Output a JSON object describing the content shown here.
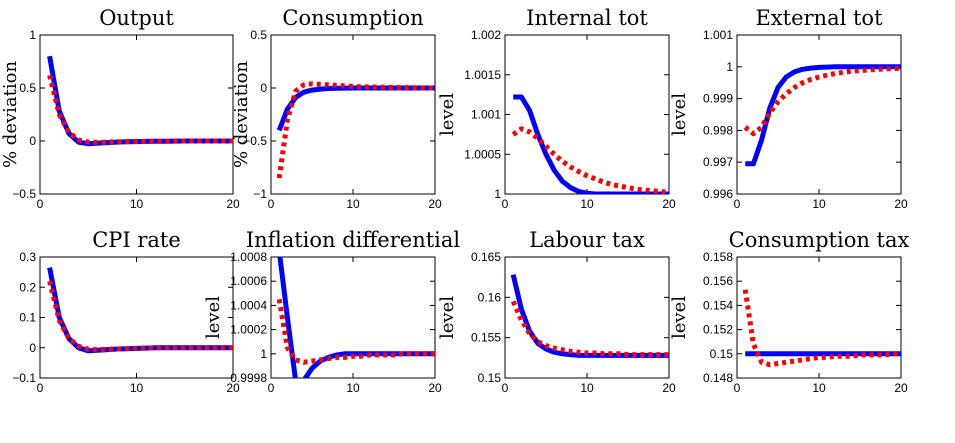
{
  "chart_data": [
    {
      "type": "line",
      "title": "Output",
      "ylabel": "% deviation",
      "xlim": [
        0,
        20
      ],
      "ylim": [
        -0.5,
        1
      ],
      "xticks": [
        0,
        10,
        20
      ],
      "xtick_labels": [
        "0",
        "10",
        "20"
      ],
      "yticks": [
        -0.5,
        0,
        0.5,
        1
      ],
      "ytick_labels": [
        "−0.5",
        "0",
        "0.5",
        "1"
      ],
      "x": [
        1,
        2,
        3,
        4,
        5,
        6,
        7,
        8,
        9,
        10,
        11,
        12,
        13,
        14,
        15,
        16,
        17,
        18,
        19,
        20
      ],
      "series": [
        {
          "color": "#0000ff",
          "style": "solid",
          "values": [
            0.8,
            0.28,
            0.07,
            -0.01,
            -0.025,
            -0.02,
            -0.015,
            -0.01,
            -0.008,
            -0.006,
            -0.004,
            -0.003,
            -0.002,
            -0.001,
            0,
            0,
            0,
            0,
            0,
            0
          ]
        },
        {
          "color": "#ff0000",
          "style": "dotted",
          "values": [
            0.62,
            0.25,
            0.08,
            0.01,
            -0.01,
            -0.012,
            -0.01,
            -0.008,
            -0.006,
            -0.005,
            -0.004,
            -0.003,
            -0.002,
            -0.001,
            0,
            0,
            0,
            0,
            0,
            0
          ]
        }
      ]
    },
    {
      "type": "line",
      "title": "Consumption",
      "ylabel": "% deviation",
      "xlim": [
        0,
        20
      ],
      "ylim": [
        -1,
        0.5
      ],
      "xticks": [
        0,
        10,
        20
      ],
      "xtick_labels": [
        "0",
        "10",
        "20"
      ],
      "yticks": [
        -1,
        -0.5,
        0,
        0.5
      ],
      "ytick_labels": [
        "−1",
        "−0.5",
        "0",
        "0.5"
      ],
      "x": [
        1,
        2,
        3,
        4,
        5,
        6,
        7,
        8,
        9,
        10,
        11,
        12,
        13,
        14,
        15,
        16,
        17,
        18,
        19,
        20
      ],
      "series": [
        {
          "color": "#0000ff",
          "style": "solid",
          "values": [
            -0.4,
            -0.2,
            -0.09,
            -0.04,
            -0.02,
            -0.01,
            -0.005,
            -0.003,
            -0.001,
            0,
            0,
            0,
            0,
            0,
            0,
            0,
            0,
            0,
            0,
            0
          ]
        },
        {
          "color": "#ff0000",
          "style": "dotted",
          "values": [
            -0.85,
            -0.3,
            -0.03,
            0.03,
            0.04,
            0.035,
            0.03,
            0.025,
            0.02,
            0.015,
            0.01,
            0.01,
            0.008,
            0.006,
            0.005,
            0.004,
            0.003,
            0.002,
            0.001,
            0
          ]
        }
      ]
    },
    {
      "type": "line",
      "title": "Internal tot",
      "ylabel": "level",
      "xlim": [
        0,
        20
      ],
      "ylim": [
        1,
        1.002
      ],
      "xticks": [
        0,
        10,
        20
      ],
      "xtick_labels": [
        "0",
        "10",
        "20"
      ],
      "yticks": [
        1,
        1.0005,
        1.001,
        1.0015,
        1.002
      ],
      "ytick_labels": [
        "1",
        "1.0005",
        "1.001",
        "1.0015",
        "1.002"
      ],
      "x": [
        1,
        2,
        3,
        4,
        5,
        6,
        7,
        8,
        9,
        10,
        11,
        12,
        13,
        14,
        15,
        16,
        17,
        18,
        19,
        20
      ],
      "series": [
        {
          "color": "#0000ff",
          "style": "solid",
          "values": [
            1.00122,
            1.00122,
            1.00105,
            1.00075,
            1.0005,
            1.0003,
            1.00016,
            1.00008,
            1.00003,
            1.00001,
            1.0,
            1.0,
            1.0,
            1.0,
            1.0,
            1.0,
            1.0,
            1.0,
            1.0,
            1.0
          ]
        },
        {
          "color": "#ff0000",
          "style": "dotted",
          "values": [
            1.00075,
            1.00082,
            1.00078,
            1.0007,
            1.0006,
            1.0005,
            1.00041,
            1.00034,
            1.00028,
            1.00023,
            1.00019,
            1.00015,
            1.00012,
            1.0001,
            1.00008,
            1.00006,
            1.00005,
            1.00004,
            1.00003,
            1.00002
          ]
        }
      ]
    },
    {
      "type": "line",
      "title": "External tot",
      "ylabel": "level",
      "xlim": [
        0,
        20
      ],
      "ylim": [
        0.996,
        1.001
      ],
      "xticks": [
        0,
        10,
        20
      ],
      "xtick_labels": [
        "0",
        "10",
        "20"
      ],
      "yticks": [
        0.996,
        0.997,
        0.998,
        0.999,
        1,
        1.001
      ],
      "ytick_labels": [
        "0.996",
        "0.997",
        "0.998",
        "0.999",
        "1",
        "1.001"
      ],
      "x": [
        1,
        2,
        3,
        4,
        5,
        6,
        7,
        8,
        9,
        10,
        11,
        12,
        13,
        14,
        15,
        16,
        17,
        18,
        19,
        20
      ],
      "series": [
        {
          "color": "#0000ff",
          "style": "solid",
          "values": [
            0.99695,
            0.99695,
            0.9977,
            0.9987,
            0.99935,
            0.99968,
            0.99984,
            0.99992,
            0.99996,
            0.99998,
            0.99999,
            1.0,
            1.0,
            1.0,
            1.0,
            1.0,
            1.0,
            1.0,
            1.0,
            1.0
          ]
        },
        {
          "color": "#ff0000",
          "style": "dotted",
          "values": [
            0.9981,
            0.9979,
            0.9981,
            0.99855,
            0.9989,
            0.99915,
            0.99935,
            0.9995,
            0.9996,
            0.99968,
            0.99974,
            0.99979,
            0.99983,
            0.99986,
            0.99988,
            0.9999,
            0.99992,
            0.99993,
            0.99994,
            0.99995
          ]
        }
      ]
    },
    {
      "type": "line",
      "title": "CPI rate",
      "ylabel": "level",
      "xlim": [
        0,
        20
      ],
      "ylim": [
        -0.1,
        0.3
      ],
      "xticks": [
        0,
        10,
        20
      ],
      "xtick_labels": [
        "0",
        "10",
        "20"
      ],
      "yticks": [
        -0.1,
        0,
        0.1,
        0.2,
        0.3
      ],
      "ytick_labels": [
        "−0.1",
        "0",
        "0.1",
        "0.2",
        "0.3"
      ],
      "x": [
        1,
        2,
        3,
        4,
        5,
        6,
        7,
        8,
        9,
        10,
        11,
        12,
        13,
        14,
        15,
        16,
        17,
        18,
        19,
        20
      ],
      "series": [
        {
          "color": "#0000ff",
          "style": "solid",
          "values": [
            0.265,
            0.1,
            0.03,
            0.0,
            -0.01,
            -0.008,
            -0.006,
            -0.004,
            -0.003,
            -0.002,
            -0.001,
            0,
            0,
            0,
            0,
            0,
            0,
            0,
            0,
            0
          ]
        },
        {
          "color": "#ff0000",
          "style": "dotted",
          "values": [
            0.22,
            0.09,
            0.03,
            0.005,
            -0.005,
            -0.006,
            -0.005,
            -0.004,
            -0.003,
            -0.002,
            -0.001,
            0,
            0,
            0,
            0,
            0,
            0,
            0,
            0,
            0
          ]
        }
      ]
    },
    {
      "type": "line",
      "title": "Inflation differential",
      "ylabel": "level",
      "xlim": [
        0,
        20
      ],
      "ylim": [
        0.9998,
        1.0008
      ],
      "xticks": [
        0,
        10,
        20
      ],
      "xtick_labels": [
        "0",
        "10",
        "20"
      ],
      "yticks": [
        0.9998,
        1,
        1.0002,
        1.0004,
        1.0006,
        1.0008
      ],
      "ytick_labels": [
        "0.9998",
        "1",
        "1.0002",
        "1.0004",
        "1.0006",
        "1.0008"
      ],
      "x": [
        1,
        2,
        3,
        4,
        5,
        6,
        7,
        8,
        9,
        10,
        11,
        12,
        13,
        14,
        15,
        16,
        17,
        18,
        19,
        20
      ],
      "series": [
        {
          "color": "#0000ff",
          "style": "solid",
          "values": [
            1.00085,
            1.0003,
            0.99978,
            0.99978,
            0.99988,
            0.99994,
            0.99997,
            0.99999,
            1.0,
            1.0,
            1.0,
            1.0,
            1.0,
            1.0,
            1.0,
            1.0,
            1.0,
            1.0,
            1.0,
            1.0
          ]
        },
        {
          "color": "#ff0000",
          "style": "dotted",
          "values": [
            1.00045,
            1.00005,
            0.99995,
            0.99993,
            0.99994,
            0.99995,
            0.99996,
            0.99997,
            0.99997,
            0.99998,
            0.99998,
            0.99999,
            0.99999,
            0.99999,
            0.99999,
            1.0,
            1.0,
            1.0,
            1.0,
            1.0
          ]
        }
      ]
    },
    {
      "type": "line",
      "title": "Labour tax",
      "ylabel": "level",
      "xlim": [
        0,
        20
      ],
      "ylim": [
        0.15,
        0.165
      ],
      "xticks": [
        0,
        10,
        20
      ],
      "xtick_labels": [
        "0",
        "10",
        "20"
      ],
      "yticks": [
        0.15,
        0.155,
        0.16,
        0.165
      ],
      "ytick_labels": [
        "0.15",
        "0.155",
        "0.16",
        "0.165"
      ],
      "x": [
        1,
        2,
        3,
        4,
        5,
        6,
        7,
        8,
        9,
        10,
        11,
        12,
        13,
        14,
        15,
        16,
        17,
        18,
        19,
        20
      ],
      "series": [
        {
          "color": "#0000ff",
          "style": "solid",
          "values": [
            0.1628,
            0.1585,
            0.1558,
            0.1543,
            0.1536,
            0.1532,
            0.153,
            0.1529,
            0.1528,
            0.1528,
            0.1528,
            0.1528,
            0.1528,
            0.1528,
            0.1528,
            0.1528,
            0.1528,
            0.1528,
            0.1528,
            0.1528
          ]
        },
        {
          "color": "#ff0000",
          "style": "dotted",
          "values": [
            0.1595,
            0.1572,
            0.1555,
            0.1545,
            0.154,
            0.1537,
            0.1535,
            0.1533,
            0.1532,
            0.1531,
            0.1531,
            0.153,
            0.153,
            0.153,
            0.1529,
            0.1529,
            0.1529,
            0.1529,
            0.1529,
            0.1529
          ]
        }
      ]
    },
    {
      "type": "line",
      "title": "Consumption tax",
      "ylabel": "level",
      "xlim": [
        0,
        20
      ],
      "ylim": [
        0.148,
        0.158
      ],
      "xticks": [
        0,
        10,
        20
      ],
      "xtick_labels": [
        "0",
        "10",
        "20"
      ],
      "yticks": [
        0.148,
        0.15,
        0.152,
        0.154,
        0.156,
        0.158
      ],
      "ytick_labels": [
        "0.148",
        "0.15",
        "0.152",
        "0.154",
        "0.156",
        "0.158"
      ],
      "x": [
        1,
        2,
        3,
        4,
        5,
        6,
        7,
        8,
        9,
        10,
        11,
        12,
        13,
        14,
        15,
        16,
        17,
        18,
        19,
        20
      ],
      "series": [
        {
          "color": "#0000ff",
          "style": "solid",
          "values": [
            0.15,
            0.15,
            0.15,
            0.15,
            0.15,
            0.15,
            0.15,
            0.15,
            0.15,
            0.15,
            0.15,
            0.15,
            0.15,
            0.15,
            0.15,
            0.15,
            0.15,
            0.15,
            0.15,
            0.15
          ]
        },
        {
          "color": "#ff0000",
          "style": "dotted",
          "values": [
            0.1553,
            0.1508,
            0.1493,
            0.1491,
            0.1492,
            0.1493,
            0.1494,
            0.1495,
            0.1496,
            0.1497,
            0.1497,
            0.1498,
            0.1498,
            0.1498,
            0.1499,
            0.1499,
            0.1499,
            0.1499,
            0.15,
            0.15
          ]
        }
      ]
    }
  ]
}
